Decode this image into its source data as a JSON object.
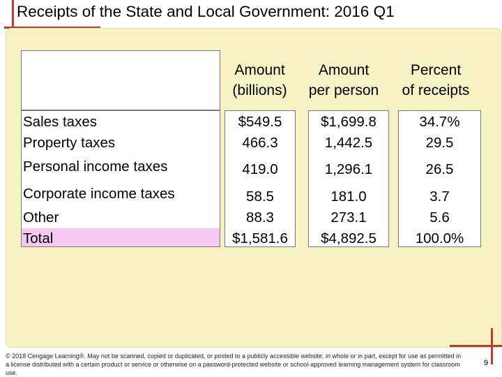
{
  "title": "Receipts of the State and Local Government: 2016 Q1",
  "columns": [
    {
      "line1": "Amount",
      "line2": "(billions)"
    },
    {
      "line1": "Amount",
      "line2": "per person"
    },
    {
      "line1": "Percent",
      "line2": "of receipts"
    }
  ],
  "rows": [
    {
      "label": "Sales taxes",
      "amount": "$549.5",
      "per_person": "$1,699.8",
      "percent": "34.7%"
    },
    {
      "label": "Property taxes",
      "amount": "466.3",
      "per_person": "1,442.5",
      "percent": "29.5"
    },
    {
      "label": "Personal income taxes",
      "amount": "419.0",
      "per_person": "1,296.1",
      "percent": "26.5"
    },
    {
      "label": "Corporate income taxes",
      "amount": "58.5",
      "per_person": "181.0",
      "percent": "3.7"
    },
    {
      "label": "Other",
      "amount": "88.3",
      "per_person": "273.1",
      "percent": "5.6"
    },
    {
      "label": "Total",
      "amount": "$1,581.6",
      "per_person": "$4,892.5",
      "percent": "100.0%"
    }
  ],
  "footer": "© 2018 Cengage Learning®. May not be scanned, copied or duplicated, or posted to a publicly accessible website, in whole or in part, except for use as permitted in a license distributed with a certain product or service or otherwise on a password-protected website or school-approved learning management system for classroom use.",
  "page_number": "9",
  "colors": {
    "panel": "#f6f2c4",
    "accent_red": "#c0392b",
    "total_highlight": "#f7c8f2"
  }
}
